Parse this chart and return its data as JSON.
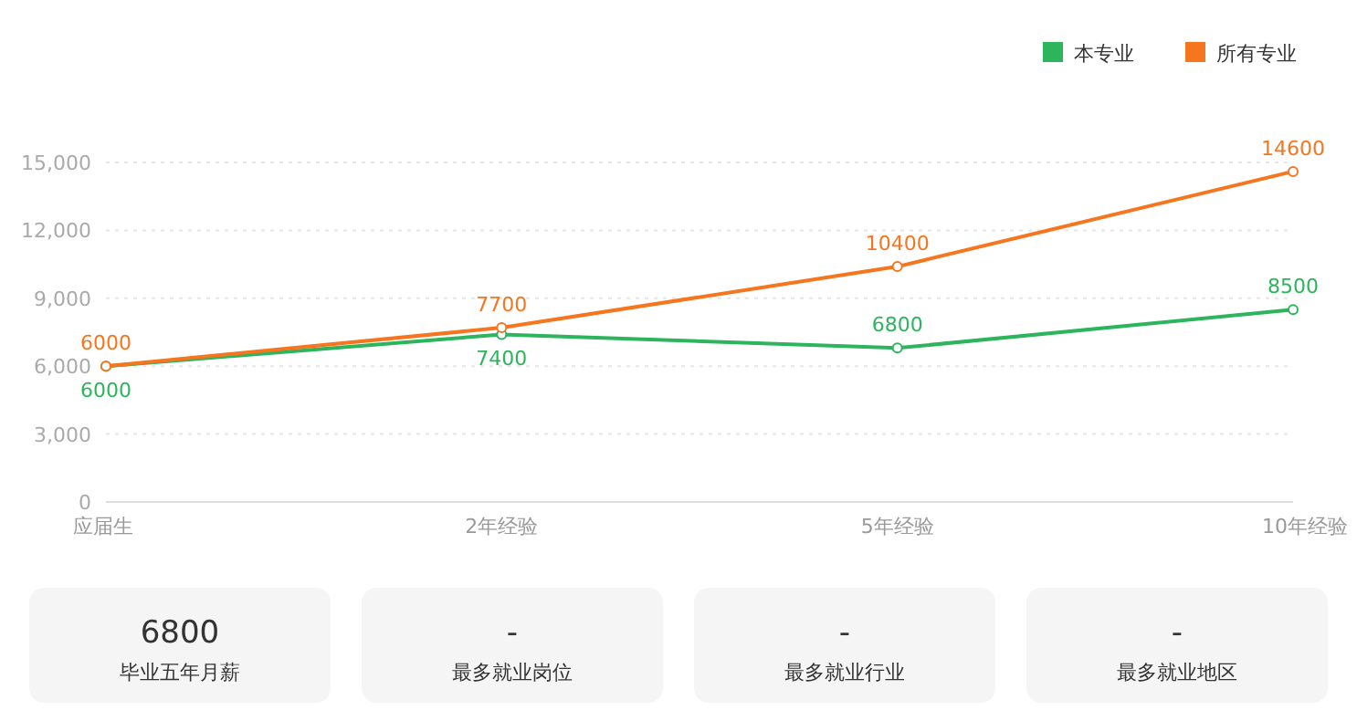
{
  "chart_data": [
    {
      "type": "line",
      "categories": [
        "应届生",
        "2年经验",
        "5年经验",
        "10年经验"
      ],
      "series": [
        {
          "name": "本专业",
          "color": "#2db55d",
          "values": [
            6000,
            7400,
            6800,
            8500
          ]
        },
        {
          "name": "所有专业",
          "color": "#f5761e",
          "values": [
            6000,
            7700,
            10400,
            14600
          ]
        }
      ],
      "ylim": [
        0,
        15000
      ],
      "yticks": [
        {
          "value": 0,
          "label": "0"
        },
        {
          "value": 3000,
          "label": "3,000"
        },
        {
          "value": 6000,
          "label": "6,000"
        },
        {
          "value": 9000,
          "label": "9,000"
        },
        {
          "value": 12000,
          "label": "12,000"
        },
        {
          "value": 15000,
          "label": "15,000"
        }
      ],
      "grid": "y",
      "legend": "top right",
      "marker": "circle",
      "data_labels": true
    },
    {
      "type": "other",
      "annotations": [
        "6800",
        "毕业五年月薪",
        "-",
        "最多就业岗位",
        "-",
        "最多就业行业",
        "-",
        "最多就业地区"
      ]
    }
  ]
}
